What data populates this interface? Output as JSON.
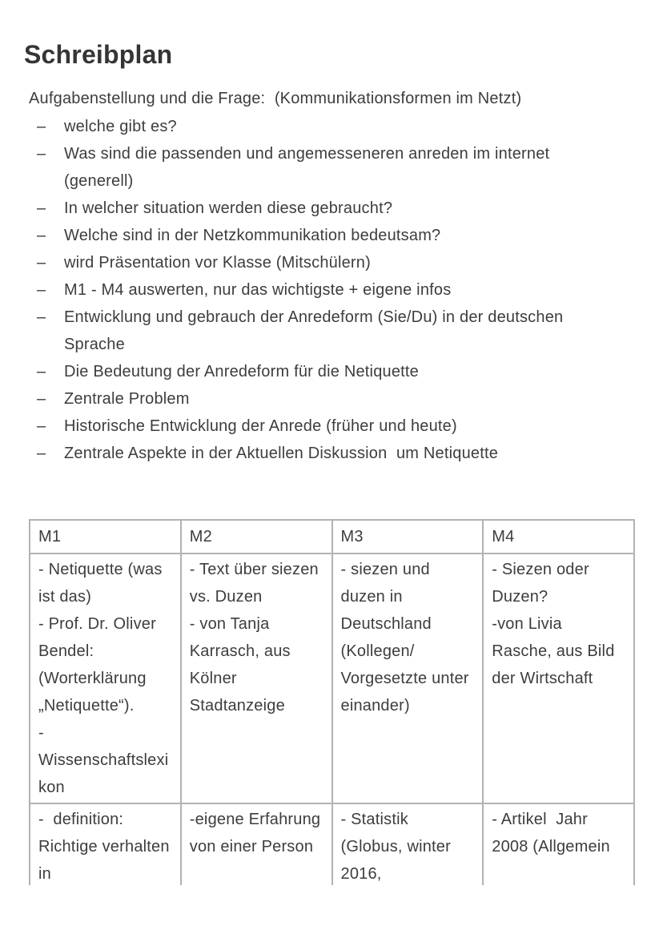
{
  "document": {
    "title": "Schreibplan",
    "intro": "Aufgabenstellung und die Frage:  (Kommunikationsformen im Netzt)",
    "list_marker": "–",
    "list_items": [
      "welche gibt es?",
      "Was sind die passenden und angemesseneren anreden im internet (generell)",
      "In welcher situation werden diese gebraucht?",
      "Welche sind in der Netzkommunikation bedeutsam?",
      "wird Präsentation vor Klasse (Mitschülern)",
      "M1 - M4 auswerten, nur das wichtigste + eigene infos",
      "Entwicklung und gebrauch der Anredeform (Sie/Du) in der deutschen Sprache",
      "Die Bedeutung der Anredeform für die Netiquette",
      "Zentrale Problem",
      "Historische Entwicklung der Anrede (früher und heute)",
      "Zentrale Aspekte in der Aktuellen Diskussion  um Netiquette"
    ],
    "table": {
      "headers": [
        "M1",
        "M2",
        "M3",
        "M4"
      ],
      "rows": [
        {
          "cells": [
            "- Netiquette (was ist das)\n- Prof. Dr. Oliver Bendel: (Worterklärung „Netiquette“).\n- Wissenschaftslexikon",
            "- Text über siezen vs. Duzen\n- von Tanja Karrasch, aus Kölner Stadtanzeige",
            "- siezen und duzen in Deutschland (Kollegen/ Vorgesetzte unter einander)",
            "- Siezen oder Duzen?\n-von Livia Rasche, aus Bild der Wirtschaft"
          ]
        },
        {
          "cells": [
            "-  definition: Richtige verhalten in",
            "-eigene Erfahrung von einer Person",
            "- Statistik (Globus, winter 2016,",
            "- Artikel  Jahr 2008 (Allgemein"
          ]
        }
      ]
    }
  },
  "colors": {
    "text": "#3d3d3f",
    "title": "#353537",
    "table_border": "#b2b2b4",
    "background": "#ffffff"
  }
}
